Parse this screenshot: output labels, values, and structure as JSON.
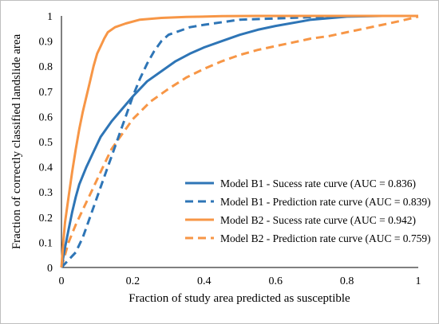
{
  "chart_data": {
    "type": "line",
    "xlabel": "Fraction of study area predicted as susceptible",
    "ylabel": "Fraction of correctly classified landslide area",
    "xlim": [
      0,
      1
    ],
    "ylim": [
      0,
      1
    ],
    "x_ticks": [
      "0",
      "0.2",
      "0.4",
      "0.6",
      "0.8",
      "1"
    ],
    "y_ticks": [
      "0",
      "0.1",
      "0.2",
      "0.3",
      "0.4",
      "0.5",
      "0.6",
      "0.7",
      "0.8",
      "0.9",
      "1"
    ],
    "grid": "none",
    "legend_position": "bottom-right",
    "series": [
      {
        "name": "Model B1 - Sucess rate curve (AUC = 0.836)",
        "color": "#2e75b6",
        "dash": "solid",
        "points": [
          [
            0,
            0
          ],
          [
            0.01,
            0.08
          ],
          [
            0.02,
            0.15
          ],
          [
            0.03,
            0.22
          ],
          [
            0.04,
            0.28
          ],
          [
            0.05,
            0.33
          ],
          [
            0.07,
            0.4
          ],
          [
            0.09,
            0.46
          ],
          [
            0.11,
            0.52
          ],
          [
            0.14,
            0.58
          ],
          [
            0.17,
            0.63
          ],
          [
            0.2,
            0.68
          ],
          [
            0.24,
            0.74
          ],
          [
            0.28,
            0.78
          ],
          [
            0.32,
            0.82
          ],
          [
            0.36,
            0.85
          ],
          [
            0.4,
            0.875
          ],
          [
            0.45,
            0.9
          ],
          [
            0.5,
            0.925
          ],
          [
            0.55,
            0.945
          ],
          [
            0.6,
            0.96
          ],
          [
            0.7,
            0.985
          ],
          [
            0.8,
            0.997
          ],
          [
            0.9,
            1.0
          ],
          [
            1.0,
            1.0
          ]
        ]
      },
      {
        "name": "Model B1 - Prediction rate curve (AUC = 0.839)",
        "color": "#2e75b6",
        "dash": "dashed",
        "points": [
          [
            0,
            0
          ],
          [
            0.02,
            0.03
          ],
          [
            0.04,
            0.06
          ],
          [
            0.06,
            0.12
          ],
          [
            0.08,
            0.2
          ],
          [
            0.1,
            0.28
          ],
          [
            0.12,
            0.36
          ],
          [
            0.14,
            0.44
          ],
          [
            0.16,
            0.52
          ],
          [
            0.18,
            0.6
          ],
          [
            0.2,
            0.68
          ],
          [
            0.22,
            0.75
          ],
          [
            0.24,
            0.81
          ],
          [
            0.26,
            0.86
          ],
          [
            0.28,
            0.9
          ],
          [
            0.3,
            0.925
          ],
          [
            0.33,
            0.94
          ],
          [
            0.36,
            0.955
          ],
          [
            0.4,
            0.965
          ],
          [
            0.45,
            0.975
          ],
          [
            0.5,
            0.985
          ],
          [
            0.6,
            0.99
          ],
          [
            0.7,
            0.995
          ],
          [
            0.8,
            1.0
          ],
          [
            1.0,
            1.0
          ]
        ]
      },
      {
        "name": "Model B2 - Sucess rate curve (AUC = 0.942)",
        "color": "#f79646",
        "dash": "solid",
        "points": [
          [
            0,
            0
          ],
          [
            0.005,
            0.1
          ],
          [
            0.01,
            0.18
          ],
          [
            0.02,
            0.28
          ],
          [
            0.03,
            0.38
          ],
          [
            0.04,
            0.47
          ],
          [
            0.05,
            0.55
          ],
          [
            0.06,
            0.62
          ],
          [
            0.07,
            0.68
          ],
          [
            0.08,
            0.74
          ],
          [
            0.09,
            0.8
          ],
          [
            0.1,
            0.85
          ],
          [
            0.11,
            0.88
          ],
          [
            0.12,
            0.91
          ],
          [
            0.13,
            0.935
          ],
          [
            0.15,
            0.955
          ],
          [
            0.18,
            0.97
          ],
          [
            0.22,
            0.985
          ],
          [
            0.28,
            0.992
          ],
          [
            0.35,
            0.996
          ],
          [
            0.45,
            0.999
          ],
          [
            0.55,
            1.0
          ],
          [
            1.0,
            1.0
          ]
        ]
      },
      {
        "name": "Model B2 - Prediction rate curve (AUC = 0.759)",
        "color": "#f79646",
        "dash": "dashed",
        "points": [
          [
            0,
            0
          ],
          [
            0.02,
            0.1
          ],
          [
            0.04,
            0.17
          ],
          [
            0.06,
            0.23
          ],
          [
            0.08,
            0.29
          ],
          [
            0.1,
            0.35
          ],
          [
            0.12,
            0.41
          ],
          [
            0.14,
            0.47
          ],
          [
            0.16,
            0.51
          ],
          [
            0.18,
            0.55
          ],
          [
            0.2,
            0.59
          ],
          [
            0.25,
            0.66
          ],
          [
            0.3,
            0.71
          ],
          [
            0.35,
            0.755
          ],
          [
            0.4,
            0.79
          ],
          [
            0.45,
            0.82
          ],
          [
            0.5,
            0.845
          ],
          [
            0.55,
            0.865
          ],
          [
            0.6,
            0.88
          ],
          [
            0.65,
            0.895
          ],
          [
            0.7,
            0.91
          ],
          [
            0.75,
            0.92
          ],
          [
            0.8,
            0.935
          ],
          [
            0.85,
            0.95
          ],
          [
            0.9,
            0.965
          ],
          [
            0.95,
            0.98
          ],
          [
            1.0,
            0.997
          ]
        ]
      }
    ]
  }
}
